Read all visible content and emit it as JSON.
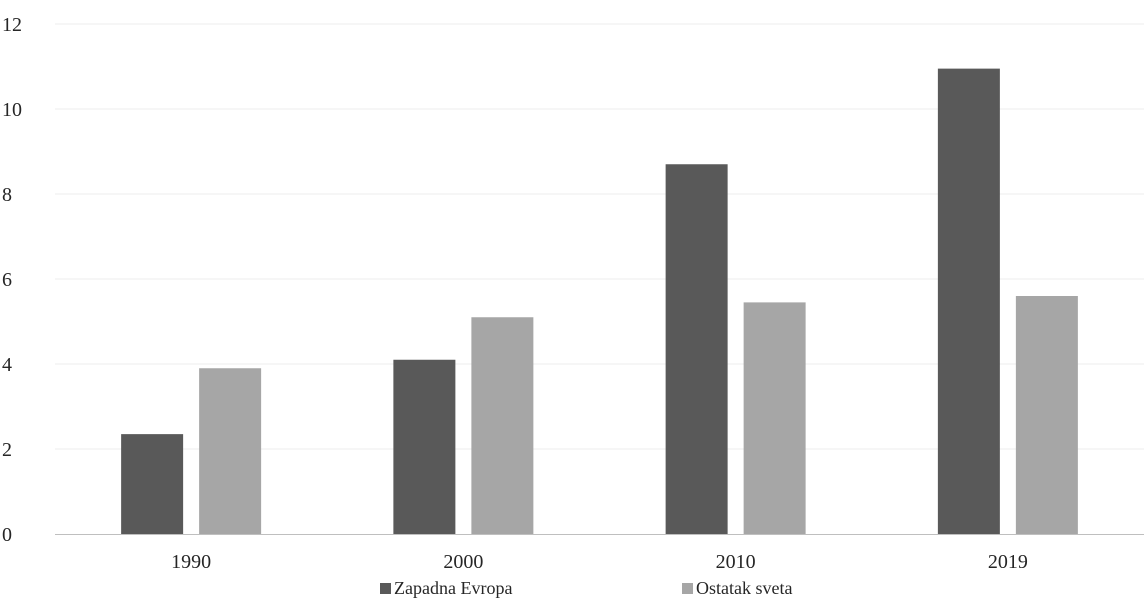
{
  "chart_data": {
    "type": "bar",
    "categories": [
      "1990",
      "2000",
      "2010",
      "2019"
    ],
    "series": [
      {
        "name": "Zapadna Evropa",
        "values": [
          2.35,
          4.1,
          8.7,
          10.95
        ],
        "color": "#595959"
      },
      {
        "name": "Ostatak sveta",
        "values": [
          3.9,
          5.1,
          5.45,
          5.6
        ],
        "color": "#a6a6a6"
      }
    ],
    "ylim": [
      0,
      12
    ],
    "yticks": [
      "0",
      "2",
      "4",
      "6",
      "8",
      "10",
      "12"
    ],
    "grid": true,
    "legend_position": "bottom",
    "title": "",
    "xlabel": "",
    "ylabel": ""
  }
}
